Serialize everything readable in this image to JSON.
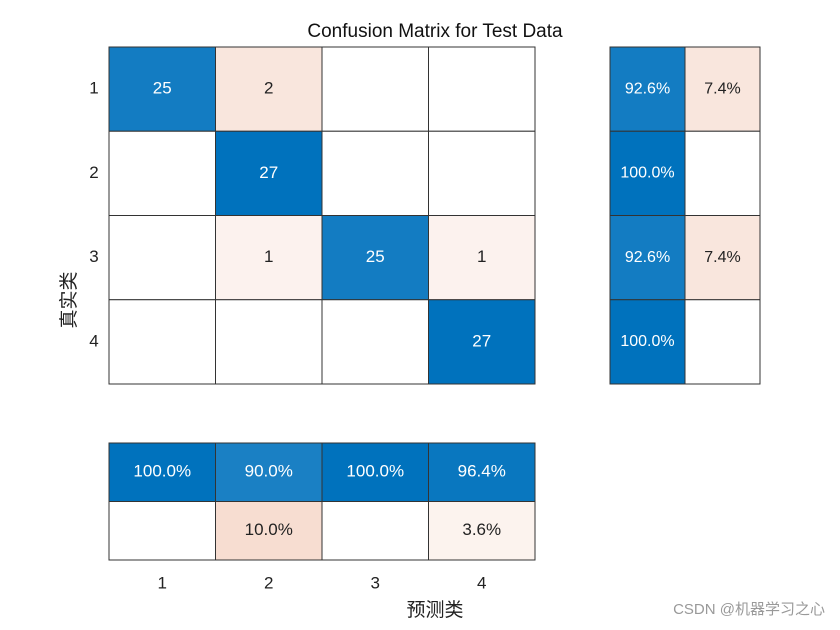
{
  "chart_data": {
    "type": "confusion",
    "title": "Confusion Matrix for Test Data",
    "x_label": "预测类",
    "y_label": "真实类",
    "classes": [
      "1",
      "2",
      "3",
      "4"
    ],
    "matrix": [
      [
        25,
        2,
        null,
        null
      ],
      [
        null,
        27,
        null,
        null
      ],
      [
        null,
        1,
        25,
        1
      ],
      [
        null,
        null,
        null,
        27
      ]
    ],
    "row_summary": {
      "values": [
        [
          92.6,
          7.4
        ],
        [
          100,
          null
        ],
        [
          92.6,
          7.4
        ],
        [
          100,
          null
        ]
      ],
      "value_labels": [
        [
          "92.6%",
          "7.4%"
        ],
        [
          "100.0%",
          null
        ],
        [
          "92.6%",
          "7.4%"
        ],
        [
          "100.0%",
          null
        ]
      ]
    },
    "column_summary": {
      "values": [
        [
          100,
          90,
          100,
          96.4
        ],
        [
          null,
          10,
          null,
          3.6
        ]
      ],
      "value_labels": [
        [
          "100.0%",
          "90.0%",
          "100.0%",
          "96.4%"
        ],
        [
          null,
          "10.0%",
          null,
          "3.6%"
        ]
      ]
    },
    "colors": {
      "correct": "#0072bd",
      "incorrect": "#d95319"
    },
    "watermark": "CSDN @机器学习之心"
  }
}
